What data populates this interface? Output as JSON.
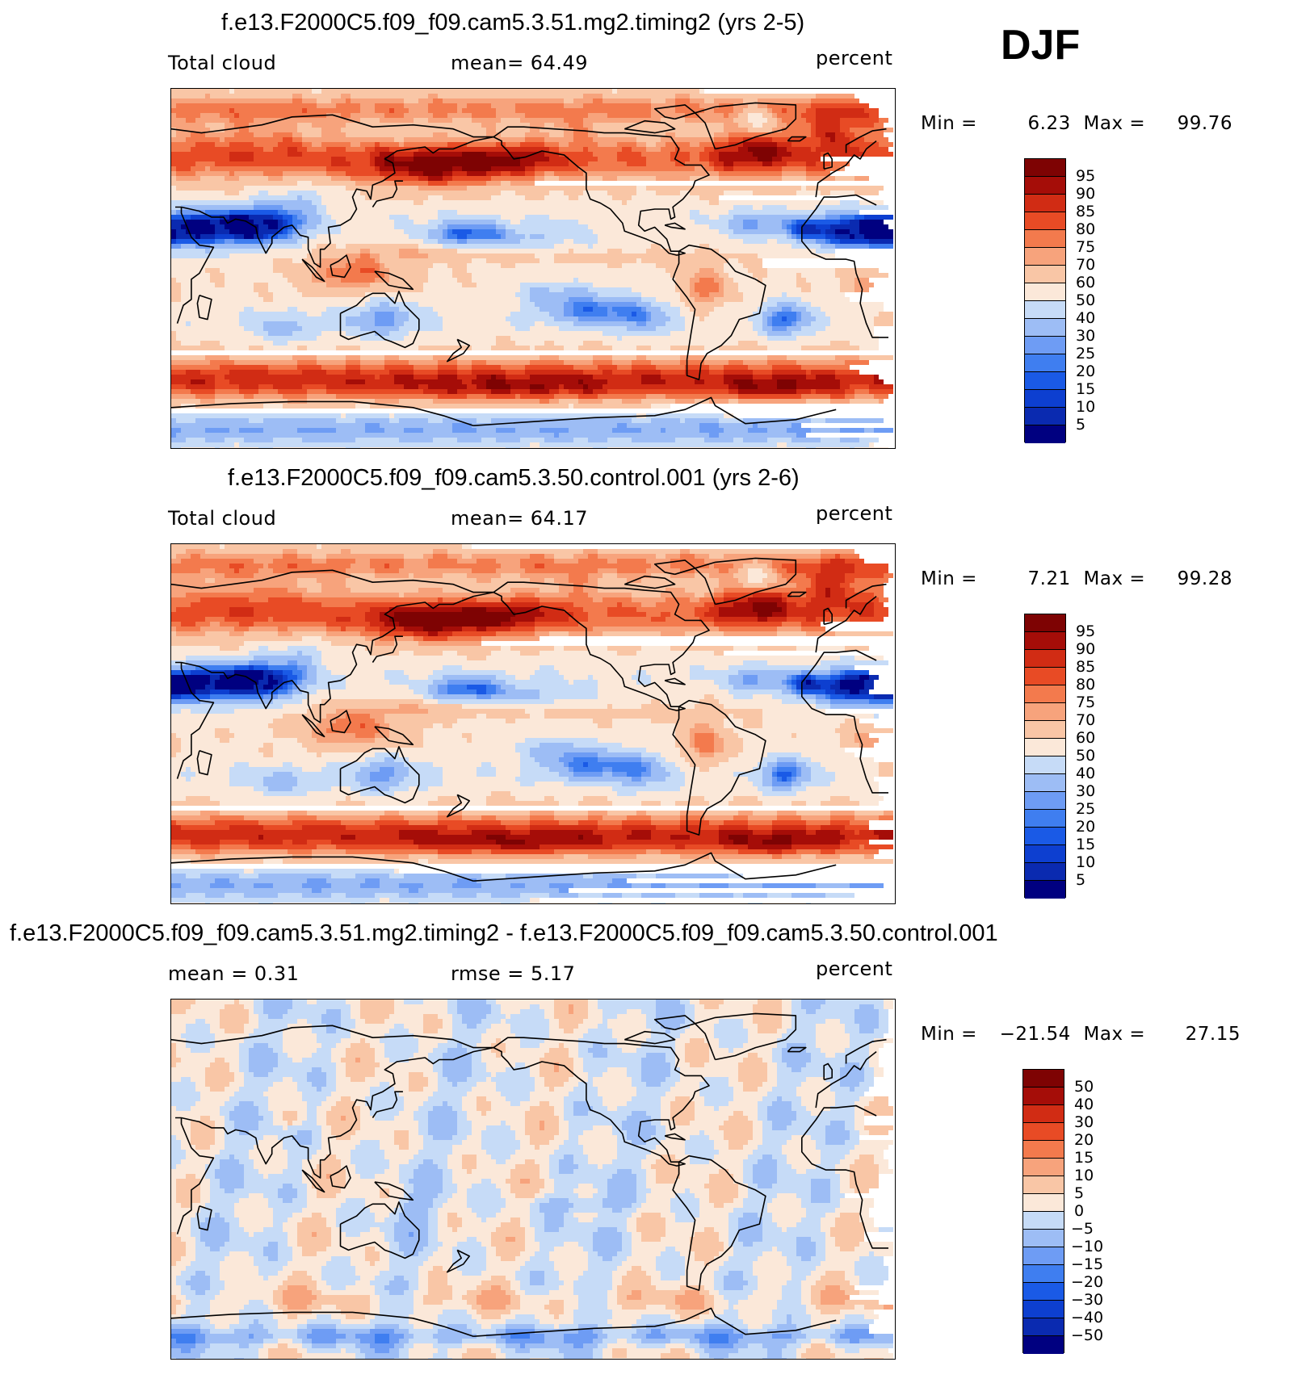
{
  "season": "DJF",
  "panels": [
    {
      "title": "f.e13.F2000C5.f09_f09.cam5.3.51.mg2.timing2 (yrs 2-5)",
      "left_label": "Total cloud",
      "center_label": "mean=  64.49",
      "right_label": "percent",
      "min_label": "Min =",
      "min_value": "6.23",
      "max_label": "Max =",
      "max_value": "99.76",
      "field": "case",
      "colorbar_levels": [
        "95",
        "90",
        "85",
        "80",
        "75",
        "70",
        "60",
        "50",
        "40",
        "30",
        "25",
        "20",
        "15",
        "10",
        "5"
      ]
    },
    {
      "title": "f.e13.F2000C5.f09_f09.cam5.3.50.control.001 (yrs 2-6)",
      "left_label": "Total cloud",
      "center_label": "mean=  64.17",
      "right_label": "percent",
      "min_label": "Min =",
      "min_value": "7.21",
      "max_label": "Max =",
      "max_value": "99.28",
      "field": "control",
      "colorbar_levels": [
        "95",
        "90",
        "85",
        "80",
        "75",
        "70",
        "60",
        "50",
        "40",
        "30",
        "25",
        "20",
        "15",
        "10",
        "5"
      ]
    },
    {
      "title": "f.e13.F2000C5.f09_f09.cam5.3.51.mg2.timing2 - f.e13.F2000C5.f09_f09.cam5.3.50.control.001",
      "left_label": "mean =   0.31",
      "center_label": "rmse =   5.17",
      "right_label": "percent",
      "min_label": "Min =",
      "min_value": "−21.54",
      "max_label": "Max =",
      "max_value": "27.15",
      "field": "difference",
      "colorbar_levels": [
        "50",
        "40",
        "30",
        "20",
        "15",
        "10",
        "5",
        "0",
        "−5",
        "−10",
        "−15",
        "−20",
        "−30",
        "−40",
        "−50"
      ]
    }
  ],
  "colors": {
    "scale": [
      "#000080",
      "#0a2ab0",
      "#0d3fd0",
      "#1a5ae6",
      "#3f7ef0",
      "#6e9cf4",
      "#9dbdf5",
      "#c6dbf7",
      "#fbe8d9",
      "#f9c6a6",
      "#f7a37c",
      "#f37a4d",
      "#e84b25",
      "#d12c14",
      "#a50d08",
      "#7e0303"
    ],
    "coast": "#000000"
  }
}
